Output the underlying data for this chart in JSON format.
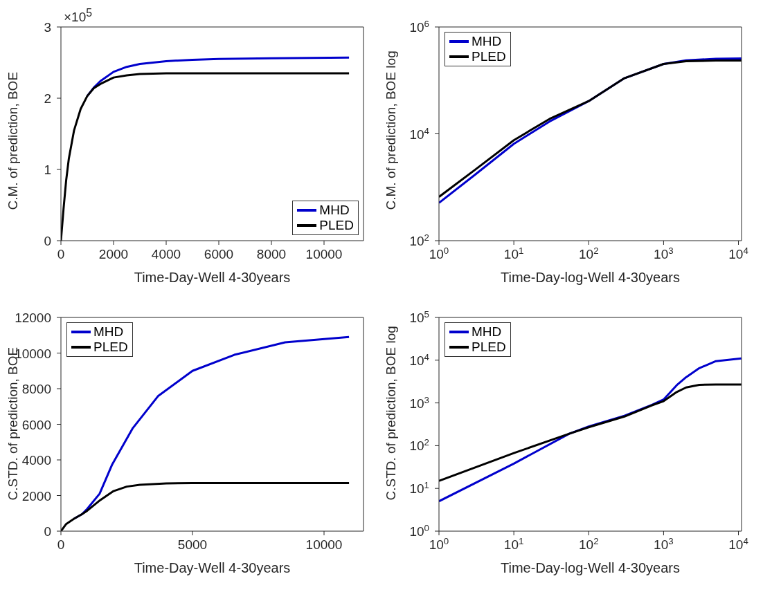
{
  "chart_data": [
    {
      "type": "line",
      "xlabel": "Time-Day-Well 4-30years",
      "ylabel": "C.M. of prediction, BOE",
      "annotations": [
        "×10$^{5}$"
      ],
      "xlim": [
        0,
        11500
      ],
      "xticks": [
        0,
        2000,
        4000,
        6000,
        8000,
        10000
      ],
      "ylim": [
        0,
        3
      ],
      "yticks": [
        0,
        1,
        2,
        3
      ],
      "grid": false,
      "legend": "bottom right",
      "series": [
        {
          "name": "MHD",
          "color": "#0000cc",
          "x": [
            1000,
            1250,
            1500,
            2000,
            2500,
            3000,
            4000,
            5000,
            6000,
            8000,
            10950
          ],
          "values": [
            2.03,
            2.15,
            2.24,
            2.37,
            2.44,
            2.48,
            2.52,
            2.54,
            2.55,
            2.56,
            2.57
          ]
        },
        {
          "name": "PLED",
          "color": "#000000",
          "x": [
            0,
            100,
            200,
            300,
            500,
            750,
            1000,
            1250,
            1500,
            2000,
            2500,
            3000,
            4000,
            6000,
            8000,
            10950
          ],
          "values": [
            0,
            0.45,
            0.85,
            1.15,
            1.55,
            1.85,
            2.03,
            2.14,
            2.2,
            2.29,
            2.32,
            2.34,
            2.35,
            2.35,
            2.35,
            2.35
          ]
        }
      ]
    },
    {
      "type": "line",
      "xlabel": "Time-Day-log-Well 4-30years",
      "ylabel": "C.M. of prediction, BOE log",
      "log": "xy",
      "xlim": [
        1,
        11000
      ],
      "xticks": [
        {
          "value": 1,
          "label": "10$^{0}$"
        },
        {
          "value": 10,
          "label": "10$^{1}$"
        },
        {
          "value": 100,
          "label": "10$^{2}$"
        },
        {
          "value": 1000,
          "label": "10$^{3}$"
        },
        {
          "value": 10000,
          "label": "10$^{4}$"
        }
      ],
      "ylim": [
        100,
        1000000
      ],
      "yticks": [
        {
          "value": 100,
          "label": "10$^{2}$"
        },
        {
          "value": 10000,
          "label": "10$^{4}$"
        },
        {
          "value": 1000000,
          "label": "10$^{6}$"
        }
      ],
      "grid": false,
      "legend": "top left",
      "series": [
        {
          "name": "MHD",
          "color": "#0000cc",
          "x": [
            1,
            3,
            10,
            30,
            100,
            300,
            1000,
            2000,
            5000,
            10950
          ],
          "values": [
            510,
            1700,
            6500,
            17000,
            41000,
            110000,
            203000,
            237000,
            254000,
            257000
          ]
        },
        {
          "name": "PLED",
          "color": "#000000",
          "x": [
            1,
            3,
            10,
            30,
            100,
            300,
            1000,
            2000,
            5000,
            10950
          ],
          "values": [
            660,
            2100,
            7600,
            19000,
            41000,
            110000,
            203000,
            229000,
            235000,
            235000
          ]
        }
      ]
    },
    {
      "type": "line",
      "xlabel": "Time-Day-Well 4-30years",
      "ylabel": "C.STD. of prediction, BOE",
      "xlim": [
        0,
        11500
      ],
      "xticks": [
        0,
        5000,
        10000
      ],
      "ylim": [
        0,
        12000
      ],
      "yticks": [
        0,
        2000,
        4000,
        6000,
        8000,
        10000,
        12000
      ],
      "grid": false,
      "legend": "top left",
      "series": [
        {
          "name": "MHD",
          "color": "#0000cc",
          "x": [
            500,
            800,
            1000,
            1470,
            1950,
            2720,
            3690,
            5000,
            6590,
            8520,
            10950
          ],
          "values": [
            700,
            950,
            1250,
            2100,
            3750,
            5760,
            7580,
            9000,
            9900,
            10600,
            10900
          ]
        },
        {
          "name": "PLED",
          "color": "#000000",
          "x": [
            0,
            200,
            500,
            800,
            1000,
            1500,
            2000,
            2500,
            3000,
            4000,
            5000,
            10950
          ],
          "values": [
            0,
            400,
            700,
            950,
            1150,
            1750,
            2250,
            2500,
            2600,
            2680,
            2700,
            2700
          ]
        }
      ]
    },
    {
      "type": "line",
      "xlabel": "Time-Day-log-Well 4-30years",
      "ylabel": "C.STD. of prediction, BOE log",
      "log": "xy",
      "xlim": [
        1,
        11000
      ],
      "xticks": [
        {
          "value": 1,
          "label": "10$^{0}$"
        },
        {
          "value": 10,
          "label": "10$^{1}$"
        },
        {
          "value": 100,
          "label": "10$^{2}$"
        },
        {
          "value": 1000,
          "label": "10$^{3}$"
        },
        {
          "value": 10000,
          "label": "10$^{4}$"
        }
      ],
      "ylim": [
        1,
        100000
      ],
      "yticks": [
        {
          "value": 1,
          "label": "10$^{0}$"
        },
        {
          "value": 10,
          "label": "10$^{1}$"
        },
        {
          "value": 100,
          "label": "10$^{2}$"
        },
        {
          "value": 1000,
          "label": "10$^{3}$"
        },
        {
          "value": 10000,
          "label": "10$^{4}$"
        },
        {
          "value": 100000,
          "label": "10$^{5}$"
        }
      ],
      "grid": false,
      "legend": "top left",
      "series": [
        {
          "name": "MHD",
          "color": "#0000cc",
          "x": [
            1,
            10,
            55,
            100,
            300,
            700,
            1000,
            1500,
            2000,
            3000,
            5000,
            10950
          ],
          "values": [
            5,
            38,
            190,
            280,
            500,
            900,
            1200,
            2600,
            4000,
            6500,
            9500,
            11000
          ]
        },
        {
          "name": "PLED",
          "color": "#000000",
          "x": [
            1,
            10,
            55,
            100,
            300,
            700,
            1000,
            1500,
            2000,
            3000,
            5000,
            10950
          ],
          "values": [
            15,
            67,
            190,
            270,
            480,
            880,
            1100,
            1800,
            2300,
            2650,
            2700,
            2700
          ]
        }
      ]
    }
  ]
}
